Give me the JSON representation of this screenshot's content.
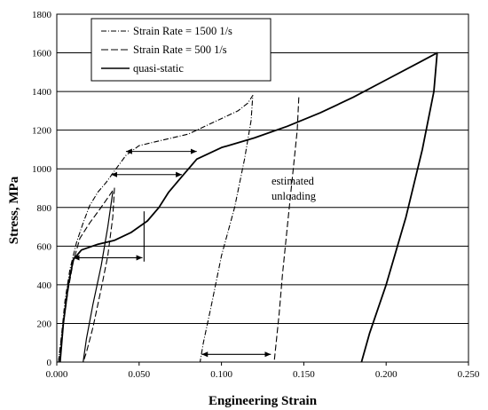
{
  "chart_data": {
    "type": "line",
    "xlabel": "Engineering Strain",
    "ylabel": "Stress, MPa",
    "xlim": [
      0,
      0.25
    ],
    "ylim": [
      0,
      1800
    ],
    "x_ticks": [
      "0.000",
      "0.050",
      "0.100",
      "0.150",
      "0.200",
      "0.250"
    ],
    "y_ticks": [
      "0",
      "200",
      "400",
      "600",
      "800",
      "1000",
      "1200",
      "1400",
      "1600",
      "1800"
    ],
    "grid": "horizontal",
    "legend_position": "top-left",
    "annotation": [
      "estimated",
      "unloading"
    ],
    "series": [
      {
        "name": "Strain Rate = 1500 1/s",
        "style": "dash-dot",
        "points": [
          [
            0.001,
            0
          ],
          [
            0.003,
            150
          ],
          [
            0.005,
            320
          ],
          [
            0.008,
            480
          ],
          [
            0.012,
            620
          ],
          [
            0.016,
            720
          ],
          [
            0.02,
            810
          ],
          [
            0.025,
            880
          ],
          [
            0.03,
            930
          ],
          [
            0.036,
            1000
          ],
          [
            0.042,
            1070
          ],
          [
            0.05,
            1120
          ],
          [
            0.06,
            1140
          ],
          [
            0.07,
            1160
          ],
          [
            0.08,
            1180
          ],
          [
            0.09,
            1220
          ],
          [
            0.1,
            1260
          ],
          [
            0.11,
            1300
          ],
          [
            0.116,
            1340
          ],
          [
            0.119,
            1380
          ],
          [
            0.118,
            1250
          ],
          [
            0.114,
            1050
          ],
          [
            0.108,
            800
          ],
          [
            0.1,
            550
          ],
          [
            0.094,
            300
          ],
          [
            0.089,
            100
          ],
          [
            0.087,
            0
          ]
        ]
      },
      {
        "name": "Strain Rate = 500 1/s",
        "style": "dash",
        "points": [
          [
            0.001,
            0
          ],
          [
            0.004,
            200
          ],
          [
            0.007,
            380
          ],
          [
            0.01,
            520
          ],
          [
            0.014,
            640
          ],
          [
            0.02,
            720
          ],
          [
            0.026,
            790
          ],
          [
            0.031,
            850
          ],
          [
            0.035,
            900
          ],
          [
            0.034,
            750
          ],
          [
            0.031,
            550
          ],
          [
            0.027,
            380
          ],
          [
            0.022,
            180
          ],
          [
            0.018,
            50
          ],
          [
            0.016,
            0
          ]
        ]
      },
      {
        "name": "quasi-static",
        "style": "solid",
        "points": [
          [
            0.002,
            0
          ],
          [
            0.004,
            200
          ],
          [
            0.007,
            400
          ],
          [
            0.01,
            530
          ],
          [
            0.015,
            580
          ],
          [
            0.025,
            610
          ],
          [
            0.035,
            630
          ],
          [
            0.045,
            670
          ],
          [
            0.055,
            730
          ],
          [
            0.062,
            800
          ],
          [
            0.068,
            880
          ],
          [
            0.075,
            950
          ],
          [
            0.085,
            1050
          ],
          [
            0.1,
            1110
          ],
          [
            0.12,
            1160
          ],
          [
            0.14,
            1220
          ],
          [
            0.16,
            1290
          ],
          [
            0.18,
            1370
          ],
          [
            0.2,
            1460
          ],
          [
            0.22,
            1550
          ],
          [
            0.231,
            1600
          ],
          [
            0.229,
            1400
          ],
          [
            0.222,
            1100
          ],
          [
            0.212,
            750
          ],
          [
            0.2,
            400
          ],
          [
            0.19,
            150
          ],
          [
            0.185,
            0
          ]
        ]
      },
      {
        "name": "",
        "style": "solid-thin",
        "points": [
          [
            0.034,
            880
          ],
          [
            0.031,
            700
          ],
          [
            0.027,
            500
          ],
          [
            0.022,
            300
          ],
          [
            0.018,
            120
          ],
          [
            0.016,
            0
          ]
        ]
      },
      {
        "name": "",
        "style": "dash",
        "points": [
          [
            0.147,
            1370
          ],
          [
            0.146,
            1200
          ],
          [
            0.143,
            950
          ],
          [
            0.14,
            700
          ],
          [
            0.137,
            450
          ],
          [
            0.135,
            250
          ],
          [
            0.133,
            80
          ],
          [
            0.132,
            0
          ]
        ]
      }
    ],
    "arrows": [
      {
        "from": [
          0.042,
          1090
        ],
        "to": [
          0.085,
          1090
        ]
      },
      {
        "from": [
          0.033,
          970
        ],
        "to": [
          0.076,
          970
        ]
      },
      {
        "from": [
          0.01,
          540
        ],
        "to": [
          0.052,
          540
        ]
      },
      {
        "from": [
          0.088,
          40
        ],
        "to": [
          0.13,
          40
        ]
      }
    ],
    "markers": [
      {
        "x": 0.053,
        "y0": 520,
        "y1": 780
      }
    ]
  }
}
